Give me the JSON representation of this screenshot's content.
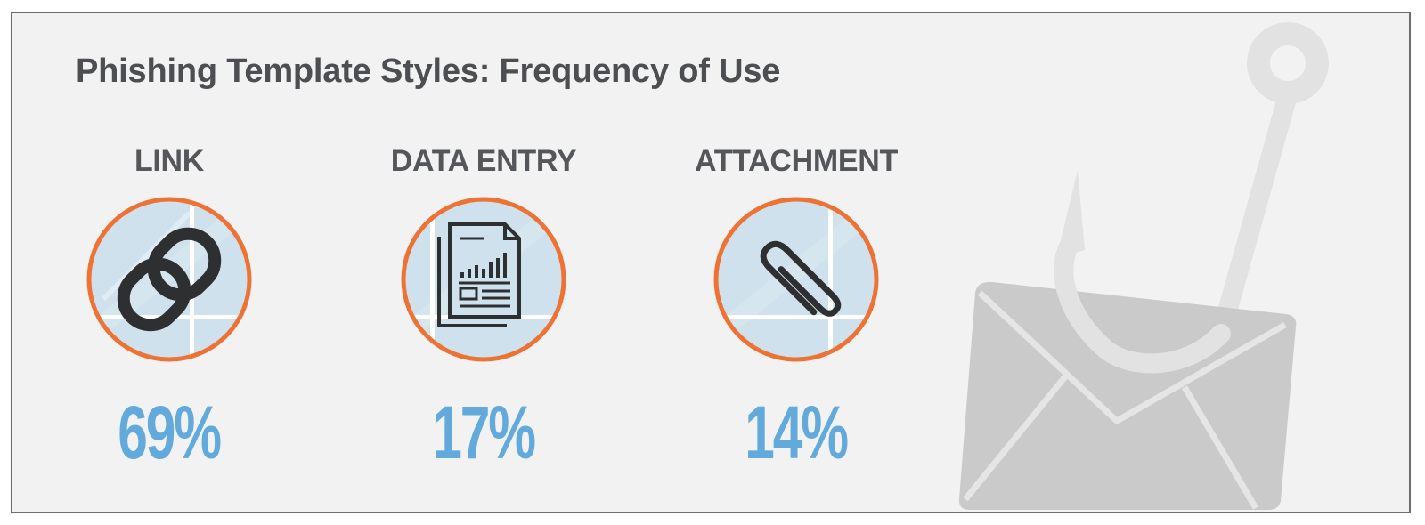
{
  "title": "Phishing Template Styles: Frequency of Use",
  "colors": {
    "ring": "#ee7233",
    "value": "#62a9dc",
    "title": "#4d4e52",
    "background": "#f1f2f1"
  },
  "stats": [
    {
      "label": "LINK",
      "value": "69%",
      "icon": "chain-link-icon"
    },
    {
      "label": "DATA ENTRY",
      "value": "17%",
      "icon": "document-chart-icon"
    },
    {
      "label": "ATTACHMENT",
      "value": "14%",
      "icon": "paperclip-icon"
    }
  ],
  "decoration": {
    "icon": "envelope-on-fishhook-icon"
  }
}
